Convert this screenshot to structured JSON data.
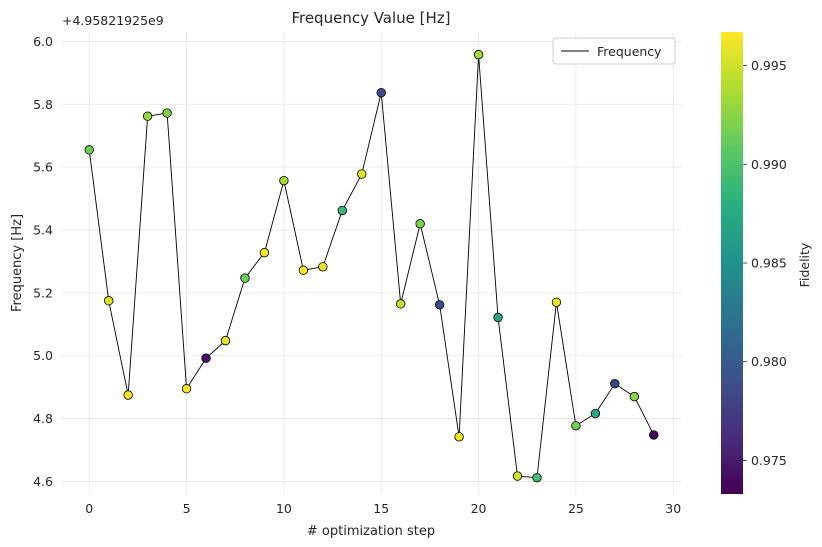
{
  "chart_data": {
    "type": "scatter",
    "title": "Frequency Value [Hz]",
    "xlabel": "# optimization step",
    "ylabel": "Frequency [Hz]",
    "y_offset_label": "+4.95821925e9",
    "xlim": [
      -1.45,
      30.45
    ],
    "ylim": [
      4.56,
      6.03
    ],
    "xticks": [
      0,
      5,
      10,
      15,
      20,
      25,
      30
    ],
    "yticks": [
      4.6,
      4.8,
      5.0,
      5.2,
      5.4,
      5.6,
      5.8,
      6.0
    ],
    "ytick_labels": [
      "4.6",
      "4.8",
      "5.0",
      "5.2",
      "5.4",
      "5.6",
      "5.8",
      "6.0"
    ],
    "grid": true,
    "legend": {
      "position": "top-right",
      "entries": [
        "Frequency"
      ]
    },
    "line_color": "#000000",
    "series": [
      {
        "name": "Frequency",
        "x": [
          0,
          1,
          2,
          3,
          4,
          5,
          6,
          7,
          8,
          9,
          10,
          11,
          12,
          13,
          14,
          15,
          16,
          17,
          18,
          19,
          20,
          21,
          22,
          23,
          24,
          25,
          26,
          27,
          28,
          29
        ],
        "y": [
          5.655,
          5.175,
          4.875,
          5.762,
          5.772,
          4.895,
          4.992,
          5.048,
          5.247,
          5.328,
          5.557,
          5.272,
          5.283,
          5.462,
          5.578,
          5.837,
          5.165,
          5.42,
          5.162,
          4.742,
          5.958,
          5.122,
          4.617,
          4.612,
          5.17,
          4.777,
          4.816,
          4.911,
          4.87,
          4.748
        ],
        "fidelity": [
          0.9915,
          0.9955,
          0.9965,
          0.993,
          0.992,
          0.9965,
          0.9745,
          0.996,
          0.9915,
          0.9965,
          0.9935,
          0.9965,
          0.996,
          0.989,
          0.9955,
          0.9785,
          0.9945,
          0.992,
          0.9785,
          0.996,
          0.9935,
          0.987,
          0.995,
          0.9895,
          0.996,
          0.9915,
          0.9875,
          0.978,
          0.9925,
          0.9735
        ]
      }
    ],
    "colorbar": {
      "label": "Fidelity",
      "cmap": "viridis",
      "range": [
        0.9733,
        0.9967
      ],
      "ticks": [
        0.975,
        0.98,
        0.985,
        0.99,
        0.995
      ],
      "tick_labels": [
        "0.975",
        "0.980",
        "0.985",
        "0.990",
        "0.995"
      ]
    }
  }
}
